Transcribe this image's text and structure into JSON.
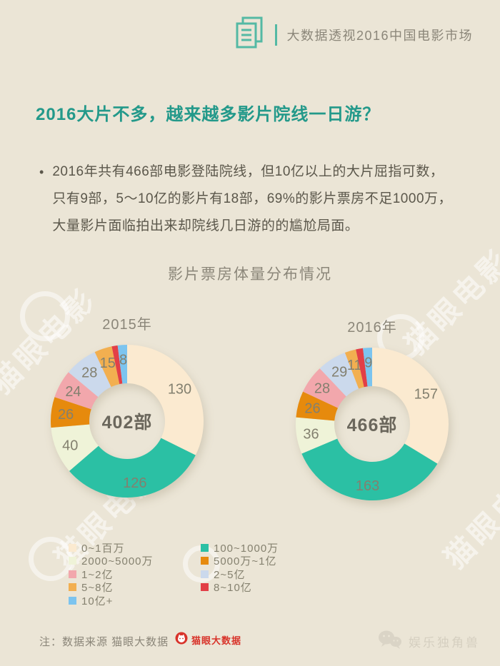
{
  "colors": {
    "background": "#EBE5D6",
    "accent_teal": "#23998A",
    "header_icon_teal": "#54B9A4",
    "header_gray": "#8B8679",
    "body_text": "#5B574B",
    "slice_label_gray": "#83806F",
    "center_label_gray": "#6B675C",
    "footer_red": "#D8332A",
    "watermark_white": "rgba(255,255,255,0.55)"
  },
  "header": {
    "title": "大数据透视2016中国电影市场"
  },
  "headline": "2016大片不多，越来越多影片院线一日游？",
  "intro": {
    "bullet": "•",
    "text": "2016年共有466部电影登陆院线，但10亿以上的大片屈指可数，\n只有9部，5～10亿的影片有18部，69%的影片票房不足1000万，\n大量影片面临拍出来却院线几日游的的尴尬局面。"
  },
  "chart_data": {
    "type": "pie",
    "subtype": "donut",
    "title": "影片票房体量分布情况",
    "legend_position": "bottom-left",
    "categories": [
      "0~1百万",
      "100~1000万",
      "2000~5000万",
      "5000万~1亿",
      "1~2亿",
      "2~5亿",
      "5~8亿",
      "8~10亿",
      "10亿+"
    ],
    "colors": [
      "#FBEAD0",
      "#2BC0A4",
      "#EFF3D8",
      "#E68A0D",
      "#F2A7AC",
      "#CBD9EC",
      "#F2AF50",
      "#E23F47",
      "#7CC4EF"
    ],
    "charts": [
      {
        "year": "2015年",
        "center": "402部",
        "total": 402,
        "values": [
          130,
          126,
          40,
          26,
          24,
          28,
          15,
          5,
          8
        ],
        "slice_labels": [
          "130",
          "126",
          "40",
          "26",
          "24",
          "28",
          "15",
          "",
          "8"
        ]
      },
      {
        "year": "2016年",
        "center": "466部",
        "total": 466,
        "values": [
          157,
          163,
          36,
          26,
          28,
          29,
          11,
          7,
          9
        ],
        "slice_labels": [
          "157",
          "163",
          "36",
          "26",
          "28",
          "29",
          "11",
          "",
          "9"
        ]
      }
    ],
    "legend_columns": [
      [
        0,
        2,
        4,
        6,
        8
      ],
      [
        1,
        3,
        5,
        7
      ]
    ]
  },
  "footer": {
    "note": "注：数据来源 猫眼大数据",
    "logo_text": "猫眼大数据",
    "wechat_name": "娱乐独角兽"
  },
  "watermark_text": "猫眼电影"
}
